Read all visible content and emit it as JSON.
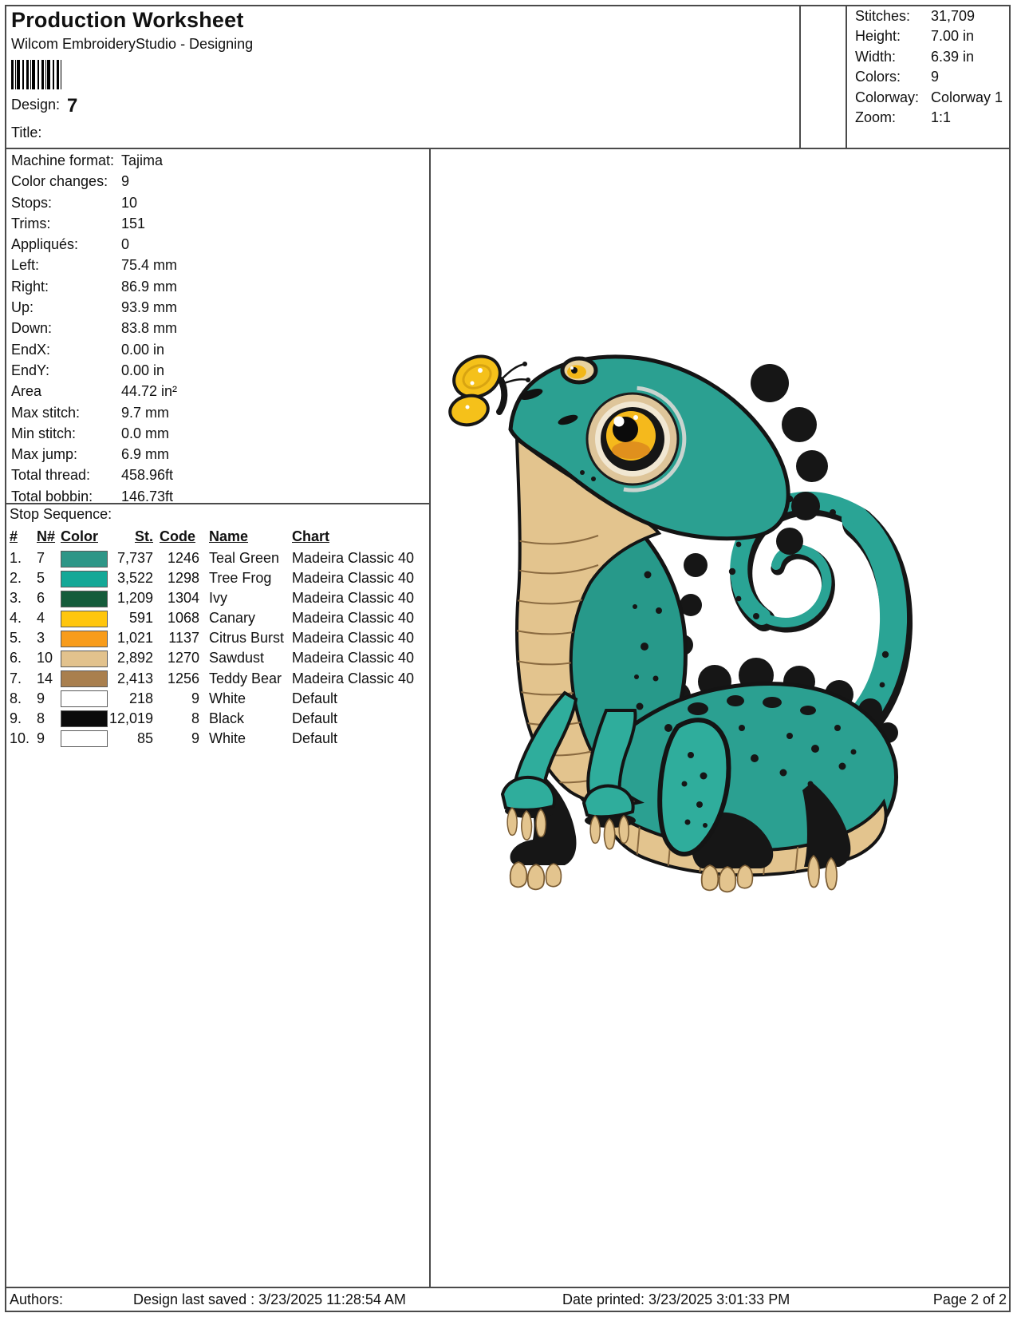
{
  "header": {
    "title": "Production Worksheet",
    "subtitle": "Wilcom EmbroideryStudio - Designing",
    "barcode_icon": "barcode",
    "design_label": "Design:",
    "design_number": "7",
    "title_label": "Title:"
  },
  "summary": {
    "rows": [
      {
        "label": "Stitches:",
        "value": "31,709"
      },
      {
        "label": "Height:",
        "value": "7.00 in"
      },
      {
        "label": "Width:",
        "value": "6.39 in"
      },
      {
        "label": "Colors:",
        "value": "9"
      },
      {
        "label": "Colorway:",
        "value": "Colorway 1"
      },
      {
        "label": "Zoom:",
        "value": "1:1"
      }
    ]
  },
  "details": {
    "rows": [
      {
        "label": "Machine format:",
        "value": "Tajima"
      },
      {
        "label": "Color changes:",
        "value": "9"
      },
      {
        "label": "Stops:",
        "value": "10"
      },
      {
        "label": "Trims:",
        "value": "151"
      },
      {
        "label": "Appliqués:",
        "value": "0"
      },
      {
        "label": "Left:",
        "value": "75.4 mm"
      },
      {
        "label": "Right:",
        "value": "86.9 mm"
      },
      {
        "label": "Up:",
        "value": "93.9 mm"
      },
      {
        "label": "Down:",
        "value": "83.8 mm"
      },
      {
        "label": "EndX:",
        "value": "0.00 in"
      },
      {
        "label": "EndY:",
        "value": "0.00 in"
      },
      {
        "label": "Area",
        "value": "44.72 in²"
      },
      {
        "label": "Max stitch:",
        "value": "9.7 mm"
      },
      {
        "label": "Min stitch:",
        "value": "0.0 mm"
      },
      {
        "label": "Max jump:",
        "value": "6.9 mm"
      },
      {
        "label": "Total thread:",
        "value": "458.96ft"
      },
      {
        "label": "Total bobbin:",
        "value": "146.73ft"
      }
    ]
  },
  "stop_sequence": {
    "title": "Stop Sequence:",
    "columns": [
      "#",
      "N#",
      "Color",
      "St.",
      "Code",
      "Name",
      "Chart"
    ],
    "rows": [
      {
        "num": "1.",
        "n": "7",
        "color": "#2E9687",
        "st": "7,737",
        "code": "1246",
        "name": "Teal Green",
        "chart": "Madeira Classic 40"
      },
      {
        "num": "2.",
        "n": "5",
        "color": "#14A897",
        "st": "3,522",
        "code": "1298",
        "name": "Tree Frog",
        "chart": "Madeira Classic 40"
      },
      {
        "num": "3.",
        "n": "6",
        "color": "#155C3B",
        "st": "1,209",
        "code": "1304",
        "name": "Ivy",
        "chart": "Madeira Classic 40"
      },
      {
        "num": "4.",
        "n": "4",
        "color": "#FFC60D",
        "st": "591",
        "code": "1068",
        "name": "Canary",
        "chart": "Madeira Classic 40"
      },
      {
        "num": "5.",
        "n": "3",
        "color": "#F89C1B",
        "st": "1,021",
        "code": "1137",
        "name": "Citrus Burst",
        "chart": "Madeira Classic 40"
      },
      {
        "num": "6.",
        "n": "10",
        "color": "#E2C28D",
        "st": "2,892",
        "code": "1270",
        "name": "Sawdust",
        "chart": "Madeira Classic 40"
      },
      {
        "num": "7.",
        "n": "14",
        "color": "#A97F4E",
        "st": "2,413",
        "code": "1256",
        "name": "Teddy Bear",
        "chart": "Madeira Classic 40"
      },
      {
        "num": "8.",
        "n": "9",
        "color": "#FFFFFF",
        "st": "218",
        "code": "9",
        "name": "White",
        "chart": "Default"
      },
      {
        "num": "9.",
        "n": "8",
        "color": "#0B0B0B",
        "st": "12,019",
        "code": "8",
        "name": "Black",
        "chart": "Default"
      },
      {
        "num": "10.",
        "n": "9",
        "color": "#FFFFFF",
        "st": "85",
        "code": "9",
        "name": "White",
        "chart": "Default"
      }
    ]
  },
  "artwork": {
    "type": "embroidery design preview",
    "subject": "Cartoon teal chameleon with curled tail looking at a yellow butterfly",
    "palette": {
      "teal": "#2BA091",
      "teal_bright": "#2FAD9C",
      "ivy": "#155C3B",
      "canary": "#F5C11A",
      "citrus": "#E0901D",
      "sawdust": "#E3C48E",
      "teddy_bear": "#8A6A40",
      "black": "#161616",
      "white": "#FFFFFF"
    }
  },
  "footer": {
    "authors_label": "Authors:",
    "last_saved": "Design last saved : 3/23/2025 11:28:54 AM",
    "date_printed": "Date printed: 3/23/2025 3:01:33 PM",
    "page": "Page 2 of 2"
  }
}
